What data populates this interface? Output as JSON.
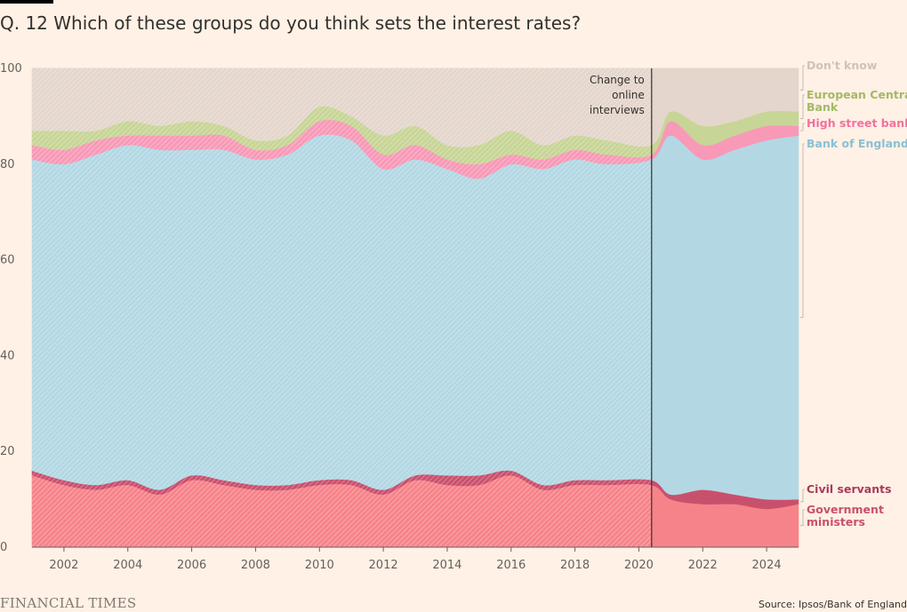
{
  "header": {
    "title": "Q. 12 Which of these groups do you think sets the interest rates?"
  },
  "footer": {
    "logo": "FINANCIAL TIMES",
    "source": "Source: Ipsos/Bank of England"
  },
  "chart_data": {
    "type": "area",
    "stacked": true,
    "title": "Q. 12 Which of these groups do you think sets the interest rates?",
    "xlabel": "",
    "ylabel": "",
    "xlim": [
      2001,
      2025
    ],
    "ylim": [
      0,
      100
    ],
    "x_ticks": [
      2002,
      2004,
      2006,
      2008,
      2010,
      2012,
      2014,
      2016,
      2018,
      2020,
      2022,
      2024
    ],
    "x_tick_labels": [
      "2002",
      "2004",
      "2006",
      "2008",
      "2010",
      "2012",
      "2014",
      "2016",
      "2018",
      "2020",
      "2022",
      "2024"
    ],
    "y_ticks": [
      0,
      20,
      40,
      60,
      80,
      100
    ],
    "y_tick_labels": [
      "0",
      "20",
      "40",
      "60",
      "80",
      "100"
    ],
    "grid": true,
    "legend": "direct labels at right",
    "annotation": {
      "x": 2020.4,
      "lines": [
        "Change to",
        "online",
        "interviews"
      ]
    },
    "x": [
      2001,
      2002,
      2003,
      2004,
      2005,
      2006,
      2007,
      2008,
      2009,
      2010,
      2011,
      2012,
      2013,
      2014,
      2015,
      2016,
      2017,
      2018,
      2019,
      2020.4,
      2021,
      2022,
      2023,
      2024,
      2025
    ],
    "series": [
      {
        "name": "Government ministers",
        "color": "#f7838a",
        "values": [
          15,
          13,
          12,
          13,
          11,
          14,
          13,
          12,
          12,
          13,
          13,
          11,
          14,
          13,
          13,
          15,
          12,
          13,
          13,
          13,
          10,
          9,
          9,
          8,
          9
        ]
      },
      {
        "name": "Civil servants",
        "color": "#c9506d",
        "values": [
          1,
          1,
          1,
          1,
          1,
          1,
          1,
          1,
          1,
          1,
          1,
          1,
          1,
          2,
          2,
          1,
          1,
          1,
          1,
          1,
          1,
          3,
          2,
          2,
          1
        ]
      },
      {
        "name": "Bank of England",
        "color": "#b3d8e4",
        "values": [
          65,
          66,
          69,
          70,
          71,
          68,
          69,
          68,
          69,
          72,
          71,
          67,
          66,
          64,
          62,
          64,
          66,
          67,
          66,
          67,
          75,
          69,
          72,
          75,
          76
        ]
      },
      {
        "name": "High street banks",
        "color": "#f899b7",
        "values": [
          3,
          3,
          3,
          2,
          3,
          3,
          3,
          2,
          2,
          3,
          3,
          3,
          3,
          2,
          3,
          2,
          2,
          2,
          2,
          1,
          3,
          3,
          3,
          3,
          2
        ]
      },
      {
        "name": "European Central Bank",
        "color": "#c7d596",
        "values": [
          3,
          4,
          2,
          3,
          2,
          3,
          2,
          2,
          2,
          3,
          2,
          4,
          4,
          3,
          4,
          5,
          3,
          3,
          3,
          2,
          2,
          4,
          3,
          3,
          3
        ]
      },
      {
        "name": "Don't know",
        "color": "#e4d6cc",
        "values": [
          13,
          13,
          13,
          11,
          12,
          11,
          12,
          15,
          14,
          8,
          10,
          14,
          12,
          16,
          16,
          13,
          16,
          14,
          15,
          16,
          9,
          12,
          11,
          9,
          9
        ]
      }
    ]
  }
}
